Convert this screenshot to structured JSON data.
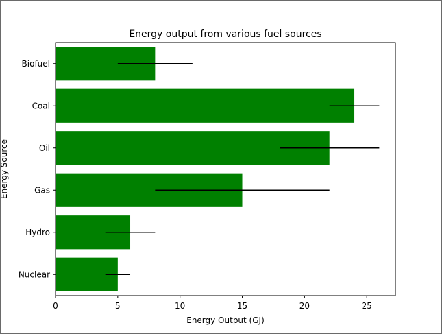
{
  "chart_data": {
    "type": "bar",
    "orientation": "horizontal",
    "title": "Energy output from various fuel sources",
    "xlabel": "Energy Output (GJ)",
    "ylabel": "Energy Source",
    "xlim": [
      0,
      27.3
    ],
    "xticks": [
      0,
      5,
      10,
      15,
      20,
      25
    ],
    "categories": [
      "Nuclear",
      "Hydro",
      "Gas",
      "Oil",
      "Coal",
      "Biofuel"
    ],
    "values": [
      5,
      6,
      15,
      22,
      24,
      8
    ],
    "errors": [
      1,
      2,
      7,
      4,
      2,
      3
    ],
    "bar_color": "#008000",
    "error_color": "#000000",
    "grid": false,
    "legend": "none"
  }
}
